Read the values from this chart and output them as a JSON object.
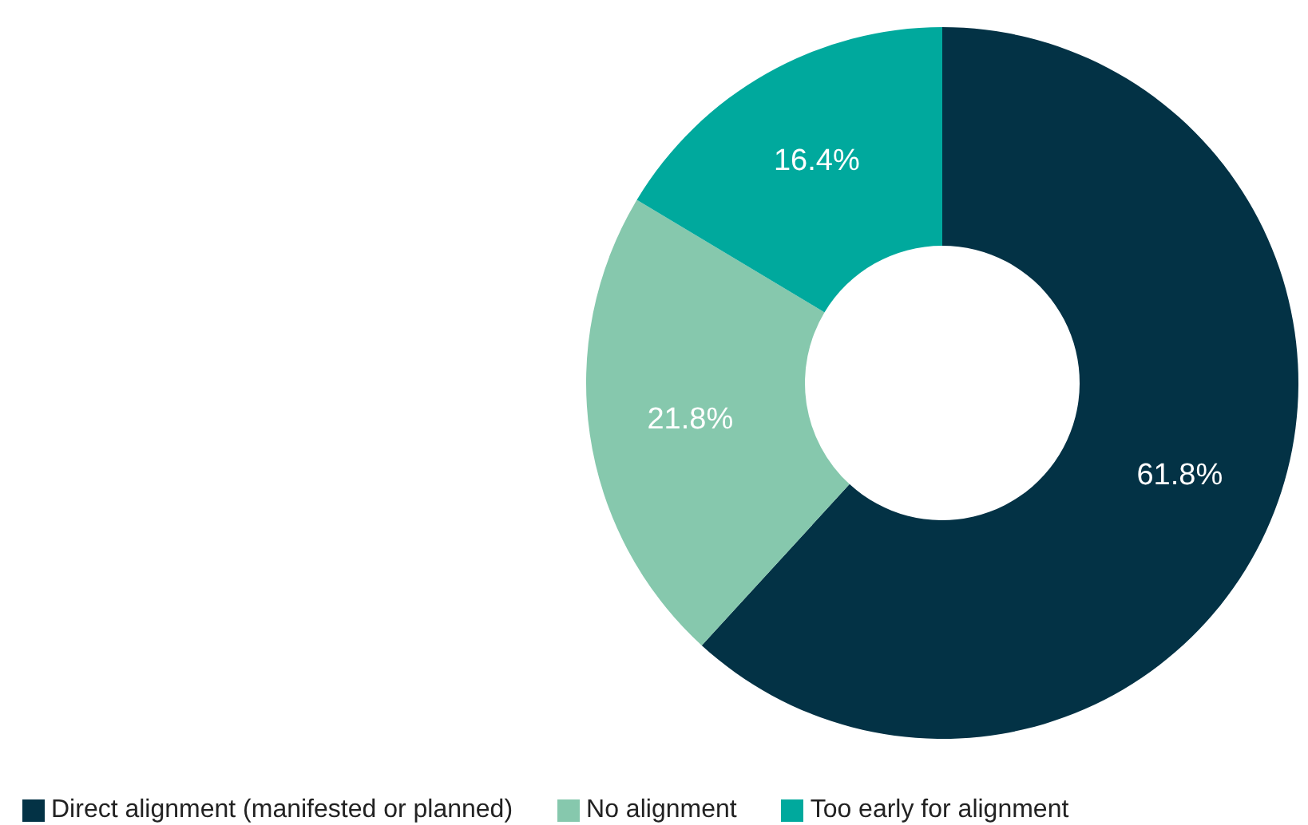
{
  "chart_data": {
    "type": "donut",
    "categories": [
      "Direct alignment (manifested or planned)",
      "No alignment",
      "Too early for alignment"
    ],
    "values": [
      61.8,
      21.8,
      16.4
    ],
    "colors": [
      "#033245",
      "#86c8ad",
      "#00a99d"
    ],
    "value_labels": [
      "61.8%",
      "21.8%",
      "16.4%"
    ],
    "legend": "bottom left"
  }
}
